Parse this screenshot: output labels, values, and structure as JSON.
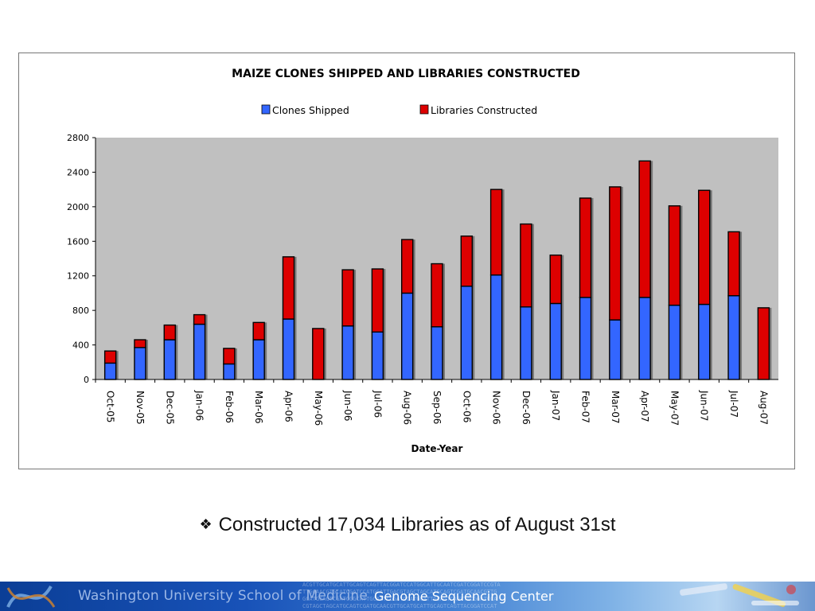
{
  "chart_data": {
    "type": "bar",
    "stacked": true,
    "title": "MAIZE CLONES SHIPPED AND LIBRARIES CONSTRUCTED",
    "xlabel": "Date-Year",
    "ylabel": "",
    "ylim": [
      0,
      2800
    ],
    "yticks": [
      0,
      400,
      800,
      1200,
      1600,
      2000,
      2400,
      2800
    ],
    "grid": false,
    "legend_position": "top",
    "categories": [
      "Oct-05",
      "Nov-05",
      "Dec-05",
      "Jan-06",
      "Feb-06",
      "Mar-06",
      "Apr-06",
      "May-06",
      "Jun-06",
      "Jul-06",
      "Aug-06",
      "Sep-06",
      "Oct-06",
      "Nov-06",
      "Dec-06",
      "Jan-07",
      "Feb-07",
      "Mar-07",
      "Apr-07",
      "May-07",
      "Jun-07",
      "Jul-07",
      "Aug-07"
    ],
    "series": [
      {
        "name": "Clones Shipped",
        "color": "#3366ff",
        "values": [
          190,
          370,
          460,
          640,
          180,
          460,
          700,
          0,
          620,
          550,
          1000,
          610,
          1080,
          1210,
          840,
          880,
          950,
          690,
          950,
          860,
          870,
          970,
          0
        ]
      },
      {
        "name": "Libraries Constructed",
        "color": "#dd0000",
        "values": [
          140,
          90,
          170,
          110,
          180,
          200,
          720,
          590,
          650,
          730,
          620,
          730,
          580,
          990,
          960,
          560,
          1150,
          1540,
          1580,
          1150,
          1320,
          740,
          830
        ]
      }
    ],
    "plot_background": "#c0c0c0"
  },
  "bullet": {
    "symbol": "❖",
    "text": "Constructed 17,034 Libraries as of August 31st"
  },
  "footer": {
    "school": "Washington University School of Medicine",
    "center": "Genome Sequencing Center",
    "background_color": "#1852b8"
  }
}
